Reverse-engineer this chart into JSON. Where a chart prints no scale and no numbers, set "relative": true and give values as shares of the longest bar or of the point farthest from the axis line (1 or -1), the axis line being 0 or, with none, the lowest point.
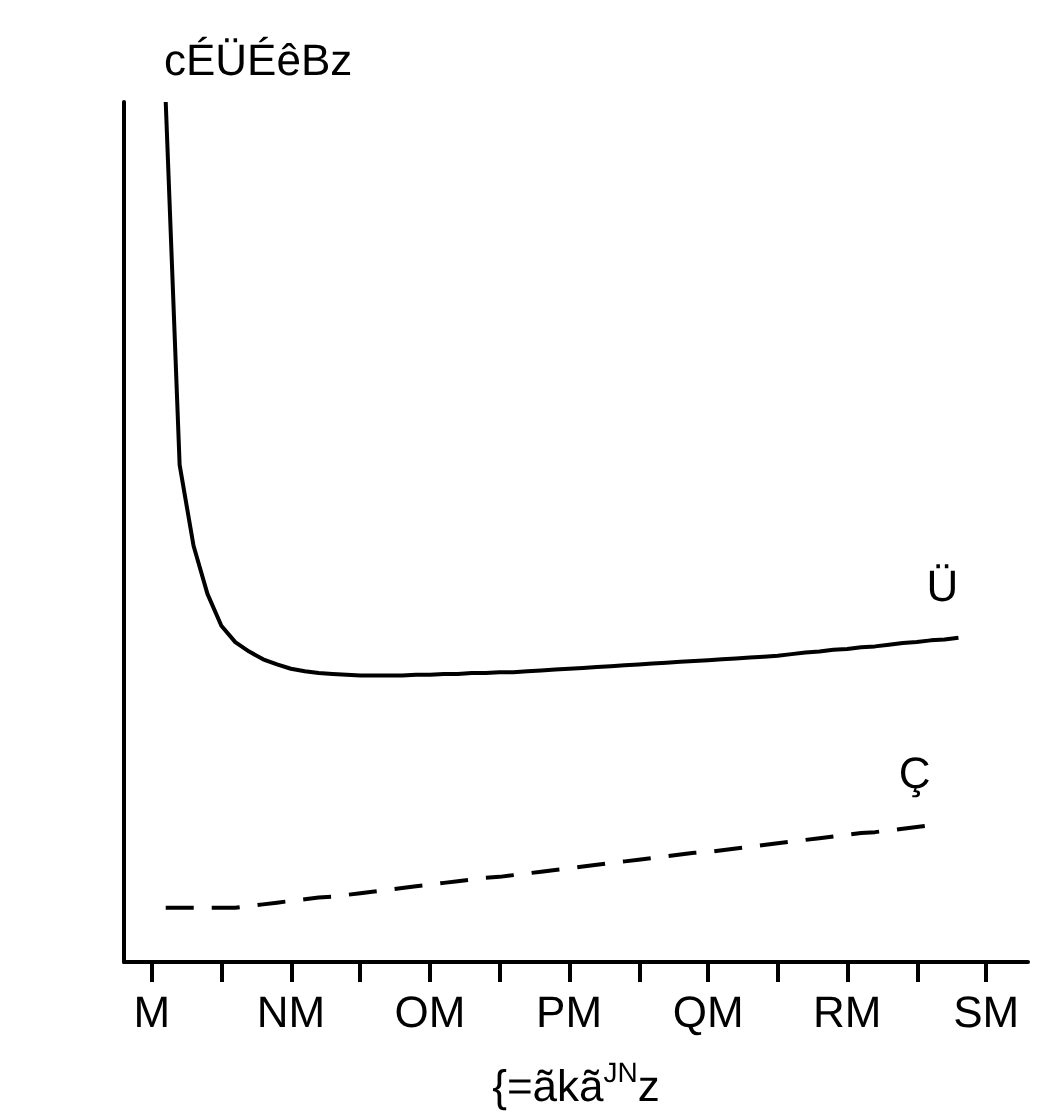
{
  "chart_data": {
    "type": "line",
    "xlabel": "{=ãkã$^{JN}$z",
    "ylabel": "cÉÜÉêBz",
    "relative": true,
    "categories": [
      null,
      null,
      "M",
      null,
      null,
      null,
      null,
      null,
      null,
      null,
      null,
      null,
      "NM",
      null,
      null,
      null,
      null,
      null,
      null,
      null,
      null,
      null,
      "OM",
      null,
      null,
      null,
      null,
      null,
      null,
      null,
      null,
      null,
      "PM",
      null,
      null,
      null,
      null,
      null,
      null,
      null,
      null,
      null,
      "QM",
      null,
      null,
      null,
      null,
      null,
      null,
      null,
      null,
      null,
      "RM",
      null,
      null,
      null,
      null,
      null,
      null,
      null,
      null,
      null,
      "SM",
      null,
      null,
      null
    ],
    "series": [
      {
        "name": "Ü",
        "color": "#000000",
        "line_style": "solid",
        "values": [
          null,
          null,
          null,
          1.0,
          0.578,
          0.484,
          0.428,
          0.391,
          0.372,
          0.361,
          0.352,
          0.346,
          0.341,
          0.338,
          0.336,
          0.335,
          0.334,
          0.333,
          0.333,
          0.333,
          0.333,
          0.334,
          0.334,
          0.335,
          0.335,
          0.336,
          0.336,
          0.337,
          0.337,
          0.338,
          0.339,
          0.34,
          0.341,
          0.342,
          0.343,
          0.344,
          0.345,
          0.346,
          0.347,
          0.348,
          0.349,
          0.35,
          0.351,
          0.352,
          0.353,
          0.354,
          0.355,
          0.356,
          0.358,
          0.36,
          0.361,
          0.363,
          0.364,
          0.366,
          0.367,
          0.369,
          0.371,
          0.372,
          0.374,
          0.375,
          0.377,
          null,
          null,
          null,
          null,
          null
        ]
      },
      {
        "name": "Ç",
        "color": "#000000",
        "line_style": "dashed",
        "values": [
          null,
          null,
          null,
          0.063,
          0.063,
          0.063,
          0.063,
          0.063,
          0.063,
          0.065,
          0.067,
          0.069,
          0.071,
          0.073,
          0.075,
          0.076,
          0.078,
          0.08,
          0.082,
          0.084,
          0.086,
          0.088,
          0.09,
          0.092,
          0.094,
          0.096,
          0.098,
          0.099,
          0.101,
          0.103,
          0.105,
          0.107,
          0.109,
          0.111,
          0.113,
          0.115,
          0.117,
          0.119,
          0.121,
          0.123,
          0.125,
          0.127,
          0.128,
          0.13,
          0.132,
          0.134,
          0.136,
          0.138,
          0.14,
          0.142,
          0.144,
          0.146,
          0.148,
          0.15,
          0.151,
          0.153,
          0.155,
          0.157,
          0.159,
          null,
          null,
          null,
          null,
          null,
          null,
          null
        ]
      }
    ],
    "grid": false,
    "legend": false,
    "marker": "none"
  }
}
